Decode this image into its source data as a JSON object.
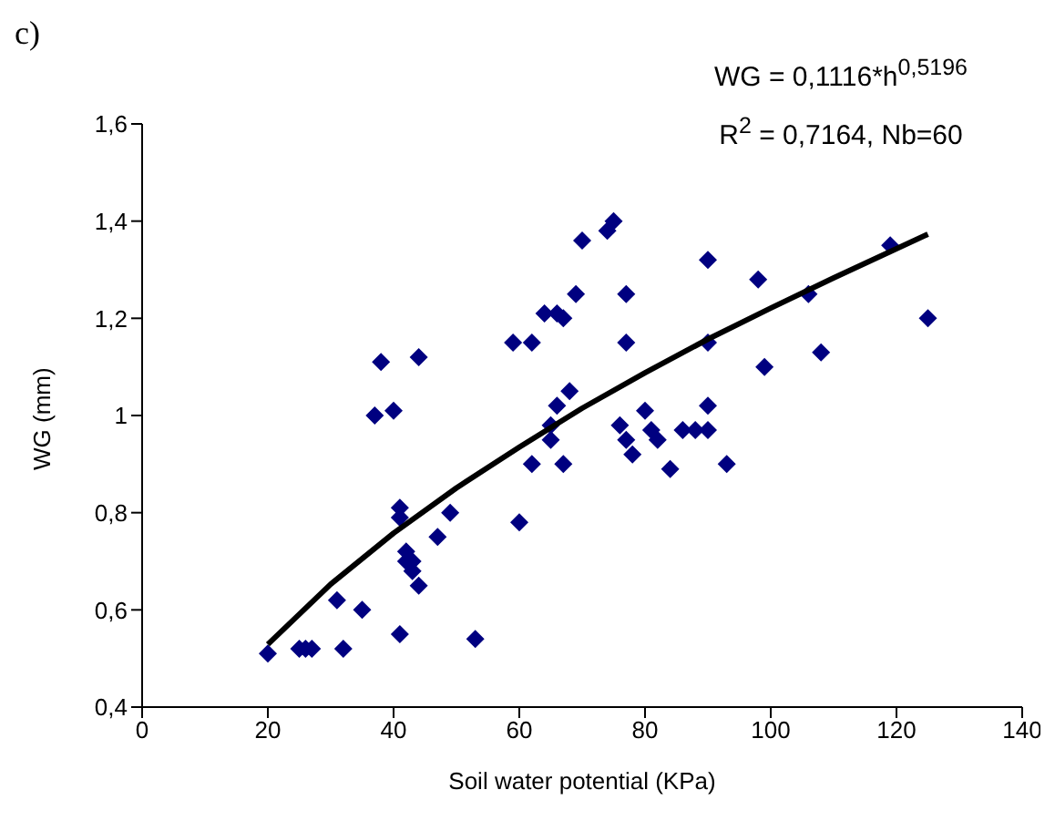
{
  "chart_data": {
    "type": "scatter",
    "xlabel": "Soil water potential (KPa)",
    "ylabel": "WG (mm)",
    "annotations": [
      "c)",
      "WG = 0,1116*h$^{0,5196}$",
      "R$^{2}$ = 0,7164, Nb=60"
    ],
    "xlim": [
      0,
      140
    ],
    "xticks": [
      0,
      20,
      40,
      60,
      80,
      100,
      120,
      140
    ],
    "ylim": [
      0.4,
      1.6
    ],
    "yticks": [
      {
        "value": 0.4,
        "label": "0,4"
      },
      {
        "value": 0.6,
        "label": "0,6"
      },
      {
        "value": 0.8,
        "label": "0,8"
      },
      1,
      {
        "value": 1.2,
        "label": "1,2"
      },
      {
        "value": 1.4,
        "label": "1,4"
      },
      {
        "value": 1.6,
        "label": "1,6"
      }
    ],
    "grid": false,
    "legend": false,
    "series": [
      {
        "type": "scatter",
        "color": "#000080",
        "marker": "diamond",
        "x": [
          20,
          25,
          26,
          27,
          31,
          32,
          35,
          37,
          38,
          40,
          41,
          41,
          42,
          42,
          43,
          43,
          44,
          44,
          41,
          47,
          49,
          53,
          59,
          60,
          62,
          62,
          64,
          65,
          66,
          66,
          67,
          67,
          68,
          69,
          70,
          74,
          75,
          76,
          77,
          77,
          77,
          78,
          80,
          81,
          82,
          84,
          86,
          88,
          90,
          90,
          90,
          90,
          93,
          98,
          99,
          106,
          108,
          119,
          125,
          65
        ],
        "values": [
          0.51,
          0.52,
          0.52,
          0.52,
          0.62,
          0.52,
          0.6,
          1.0,
          1.11,
          1.01,
          0.81,
          0.79,
          0.72,
          0.7,
          0.7,
          0.68,
          0.65,
          1.12,
          0.55,
          0.75,
          0.8,
          0.54,
          1.15,
          0.78,
          1.15,
          0.9,
          1.21,
          0.98,
          1.21,
          1.02,
          1.2,
          0.9,
          1.05,
          1.25,
          1.36,
          1.38,
          1.4,
          0.98,
          1.25,
          1.15,
          0.95,
          0.92,
          1.01,
          0.97,
          0.95,
          0.89,
          0.97,
          0.97,
          1.32,
          1.15,
          1.02,
          0.97,
          0.9,
          1.28,
          1.1,
          1.25,
          1.13,
          1.35,
          1.2,
          0.95
        ]
      },
      {
        "type": "line",
        "color": "#000000",
        "marker": "none",
        "line_style": "solid",
        "x": [
          20,
          30,
          40,
          50,
          60,
          70,
          80,
          90,
          100,
          110,
          125
        ],
        "values": [
          0.529,
          0.653,
          0.758,
          0.851,
          0.935,
          1.015,
          1.088,
          1.157,
          1.221,
          1.283,
          1.373
        ]
      }
    ]
  }
}
